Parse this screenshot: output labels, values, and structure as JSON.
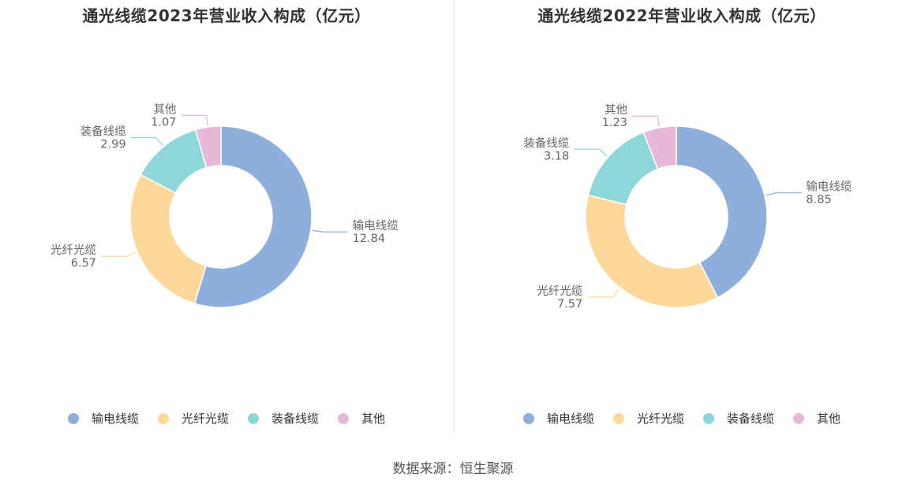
{
  "chart_data": [
    {
      "type": "pie",
      "title": "通光线缆2023年营业收入构成（亿元）",
      "categories": [
        "输电线缆",
        "光纤光缆",
        "装备线缆",
        "其他"
      ],
      "values": [
        12.84,
        6.57,
        2.99,
        1.07
      ],
      "value_labels": [
        "12.84",
        "6.57",
        "2.99",
        "1.07"
      ],
      "colors": [
        "#8eaedb",
        "#fdd89a",
        "#8dd6da",
        "#e8b8d8"
      ],
      "legend_position": "bottom"
    },
    {
      "type": "pie",
      "title": "通光线缆2022年营业收入构成（亿元）",
      "categories": [
        "输电线缆",
        "光纤光缆",
        "装备线缆",
        "其他"
      ],
      "values": [
        8.85,
        7.57,
        3.18,
        1.23
      ],
      "value_labels": [
        "8.85",
        "7.57",
        "3.18",
        "1.23"
      ],
      "colors": [
        "#8eaedb",
        "#fdd89a",
        "#8dd6da",
        "#e8b8d8"
      ],
      "legend_position": "bottom"
    }
  ],
  "source": "数据来源：恒生聚源"
}
